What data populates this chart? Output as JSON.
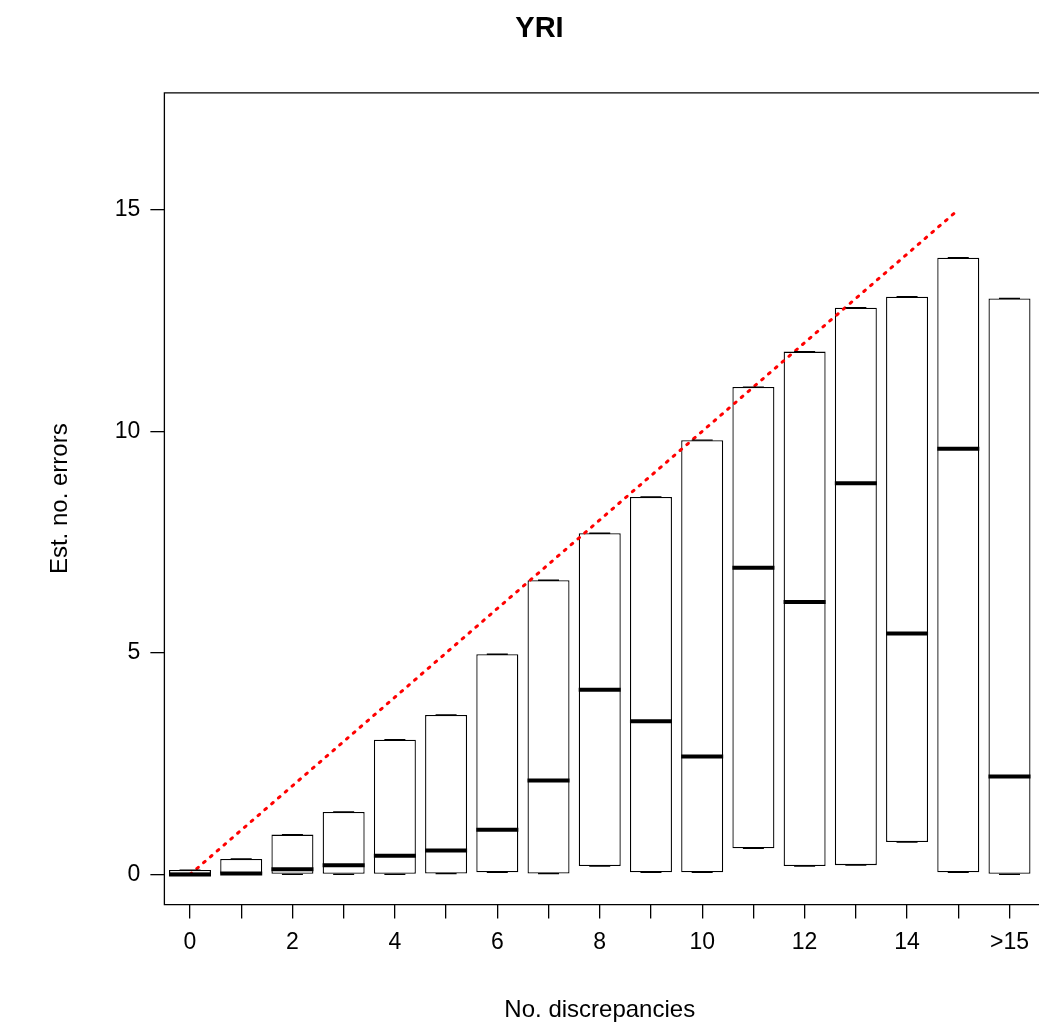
{
  "chart_data": {
    "type": "box",
    "title": "YRI",
    "xlabel": "No. discrepancies",
    "ylabel": "Est. no. errors",
    "categories": [
      "0",
      null,
      "2",
      null,
      "4",
      null,
      "6",
      null,
      "8",
      null,
      "10",
      null,
      "12",
      null,
      "14",
      null,
      ">15"
    ],
    "ylim": [
      -0.68,
      17.64
    ],
    "yticks": [
      0,
      5,
      10,
      15
    ],
    "boxes": [
      {
        "low": 0,
        "q1": 0,
        "median": 0,
        "q3": 0.1,
        "high": 0.1
      },
      {
        "low": 0,
        "q1": 0,
        "median": 0.02,
        "q3": 0.35,
        "high": 0.35
      },
      {
        "low": 0,
        "q1": 0,
        "median": 0.12,
        "q3": 0.9,
        "high": 0.9
      },
      {
        "low": 0,
        "q1": 0,
        "median": 0.21,
        "q3": 1.41,
        "high": 1.41
      },
      {
        "low": 0,
        "q1": 0,
        "median": 0.42,
        "q3": 3.04,
        "high": 3.04
      },
      {
        "low": 0.02,
        "q1": 0.02,
        "median": 0.54,
        "q3": 3.6,
        "high": 3.6
      },
      {
        "low": 0.05,
        "q1": 0.05,
        "median": 1.01,
        "q3": 4.97,
        "high": 4.97
      },
      {
        "low": 0.02,
        "q1": 0.02,
        "median": 2.12,
        "q3": 6.64,
        "high": 6.64
      },
      {
        "low": 0.19,
        "q1": 0.19,
        "median": 4.17,
        "q3": 7.7,
        "high": 7.7
      },
      {
        "low": 0.05,
        "q1": 0.05,
        "median": 3.46,
        "q3": 8.52,
        "high": 8.52
      },
      {
        "low": 0.05,
        "q1": 0.05,
        "median": 2.66,
        "q3": 9.8,
        "high": 9.8
      },
      {
        "low": 0.59,
        "q1": 0.59,
        "median": 6.92,
        "q3": 11.0,
        "high": 11.0
      },
      {
        "low": 0.19,
        "q1": 0.19,
        "median": 6.15,
        "q3": 11.8,
        "high": 11.8
      },
      {
        "low": 0.21,
        "q1": 0.21,
        "median": 8.83,
        "q3": 12.79,
        "high": 12.79
      },
      {
        "low": 0.73,
        "q1": 0.73,
        "median": 5.44,
        "q3": 13.04,
        "high": 13.04
      },
      {
        "low": 0.05,
        "q1": 0.05,
        "median": 9.61,
        "q3": 13.92,
        "high": 13.92
      },
      {
        "low": 0,
        "q1": 0,
        "median": 2.21,
        "q3": 13.0,
        "high": 13.0
      }
    ],
    "series": [
      {
        "type": "line",
        "values": [
          0,
          1,
          2,
          3,
          4,
          5,
          6,
          7,
          8,
          9,
          10,
          11,
          12,
          13,
          14,
          15,
          null
        ],
        "color": "#ff0000",
        "line_style": "dotted"
      }
    ]
  }
}
